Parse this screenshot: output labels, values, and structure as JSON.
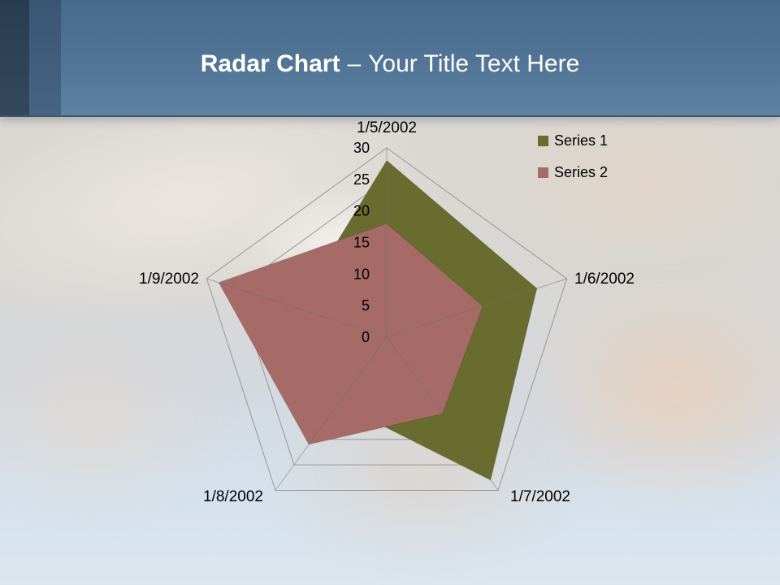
{
  "header": {
    "title_bold": "Radar Chart",
    "title_separator": "–",
    "title_rest": "Your Title Text Here",
    "band_colors": {
      "stripe_dark": "#2c3f54",
      "stripe_medium": "#3e5b7a",
      "band_top": "#486a8c",
      "band_bottom": "#5e82a4"
    }
  },
  "chart_data": {
    "type": "radar",
    "categories": [
      "1/5/2002",
      "1/6/2002",
      "1/7/2002",
      "1/8/2002",
      "1/9/2002"
    ],
    "series": [
      {
        "name": "Series 1",
        "color": "#686C2E",
        "values": [
          28,
          25,
          28,
          13,
          15
        ]
      },
      {
        "name": "Series 2",
        "color": "#A66B66",
        "values": [
          18,
          16,
          15,
          21,
          28
        ]
      }
    ],
    "radial_axis": {
      "min": 0,
      "max": 30,
      "step": 5,
      "tick_labels": [
        "0",
        "5",
        "10",
        "15",
        "20",
        "25",
        "30"
      ]
    },
    "legend_position": "top-right",
    "grid": true,
    "gridline_color": "#979797",
    "spoke_color": "#6e6e6e",
    "label_color": "#000000"
  }
}
